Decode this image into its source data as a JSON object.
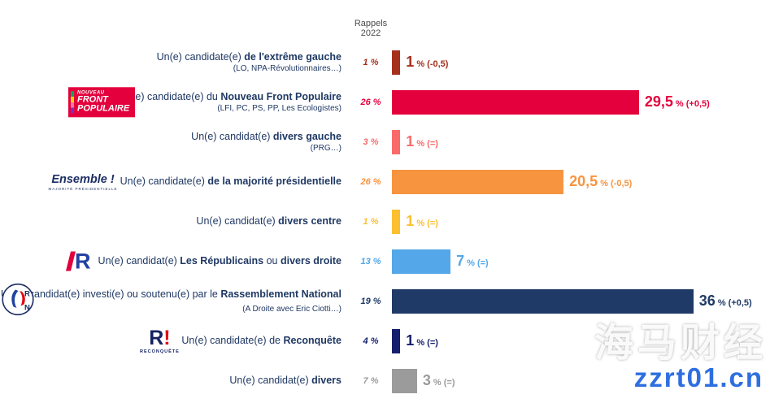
{
  "header": {
    "rappel_line1": "Rappels",
    "rappel_line2": "2022"
  },
  "logos": {
    "nfp": {
      "line1": "NOUVEAU",
      "line2": "FRONT",
      "line3": "POPULAIRE"
    },
    "ensemble": {
      "name": "Ensemble !",
      "sub": "MAJORITÉ PRÉSIDENTIELLE"
    },
    "lr": {
      "letter": "R"
    },
    "rn": {
      "letter_r": "R",
      "letter_n": "N"
    },
    "reconquete": {
      "letter": "R",
      "exclam": "!",
      "sub": "RECONQUÊTE"
    }
  },
  "watermark": {
    "line1": "海马财经",
    "line2": "zzrt01.cn"
  },
  "chart_data": {
    "type": "bar",
    "orientation": "horizontal",
    "unit": "%",
    "xlim": [
      0,
      36
    ],
    "rappel_column_header": "Rappels 2022",
    "rows": [
      {
        "label_pre": "Un(e) candidate(e) ",
        "label_bold": "de l'extrême gauche",
        "label_mid": "",
        "label_bold2": "",
        "sublabel": "(LO, NPA-Révolutionnaires…)",
        "rappel_2022": "1 %",
        "value": 1,
        "value_display": "1",
        "delta": "(-0,5)",
        "color": "#a5301c"
      },
      {
        "label_pre": "Un(e) candidate(e) du ",
        "label_bold": "Nouveau Front Populaire",
        "label_mid": "",
        "label_bold2": "",
        "sublabel": "(LFI, PC, PS, PP, Les Ecologistes)",
        "rappel_2022": "26 %",
        "value": 29.5,
        "value_display": "29,5",
        "delta": "(+0,5)",
        "color": "#e4003c"
      },
      {
        "label_pre": "Un(e) candidat(e) ",
        "label_bold": "divers gauche",
        "label_mid": "",
        "label_bold2": "",
        "sublabel": "(PRG…)",
        "rappel_2022": "3 %",
        "value": 1,
        "value_display": "1",
        "delta": "(=)",
        "color": "#f96b6b"
      },
      {
        "label_pre": "Un(e) candidate(e) ",
        "label_bold": "de la majorité présidentielle",
        "label_mid": "",
        "label_bold2": "",
        "sublabel": "",
        "rappel_2022": "26 %",
        "value": 20.5,
        "value_display": "20,5",
        "delta": "(-0,5)",
        "color": "#f79440"
      },
      {
        "label_pre": "Un(e) candidat(e) ",
        "label_bold": "divers centre",
        "label_mid": "",
        "label_bold2": "",
        "sublabel": "",
        "rappel_2022": "1 %",
        "value": 1,
        "value_display": "1",
        "delta": "(=)",
        "color": "#fcbf2f"
      },
      {
        "label_pre": "Un(e) candidat(e) ",
        "label_bold": "Les Républicains",
        "label_mid": " ou ",
        "label_bold2": "divers droite",
        "sublabel": "",
        "rappel_2022": "13 %",
        "value": 7,
        "value_display": "7",
        "delta": "(=)",
        "color": "#54a7e8"
      },
      {
        "label_pre": "Un(e) candidat(e) investi(e) ou soutenu(e) par le ",
        "label_bold": "Rassemblement National",
        "label_mid": "",
        "label_bold2": "",
        "sublabel": "(A Droite avec Eric Ciotti…)",
        "rappel_2022": "19 %",
        "value": 36,
        "value_display": "36",
        "delta": "(+0,5)",
        "color": "#1f3a66"
      },
      {
        "label_pre": "Un(e) candidate(e) de ",
        "label_bold": "Reconquête",
        "label_mid": "",
        "label_bold2": "",
        "sublabel": "",
        "rappel_2022": "4 %",
        "value": 1,
        "value_display": "1",
        "delta": "(=)",
        "color": "#151f6d"
      },
      {
        "label_pre": "Un(e) candidat(e) ",
        "label_bold": "divers",
        "label_mid": "",
        "label_bold2": "",
        "sublabel": "",
        "rappel_2022": "7 %",
        "value": 3,
        "value_display": "3",
        "delta": "(=)",
        "color": "#9b9b9b"
      }
    ]
  }
}
